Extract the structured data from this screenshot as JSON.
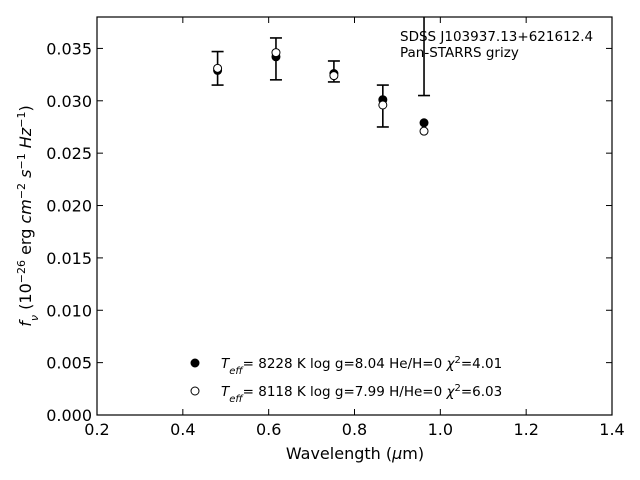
{
  "chart_data": {
    "type": "scatter",
    "title": "",
    "xlabel": "Wavelength (μm)",
    "ylabel": "f_ν (10^-26 erg cm^-2 s^-1 Hz^-1)",
    "xlim": [
      0.2,
      1.4
    ],
    "ylim": [
      0.0,
      0.038
    ],
    "x_ticks": [
      "0.2",
      "0.4",
      "0.6",
      "0.8",
      "1.0",
      "1.2",
      "1.4"
    ],
    "y_ticks": [
      "0.000",
      "0.005",
      "0.010",
      "0.015",
      "0.020",
      "0.025",
      "0.030",
      "0.035"
    ],
    "grid": false,
    "annotation_lines": [
      "SDSS J103937.13+621612.4",
      "Pan-STARRS grizy"
    ],
    "observed": {
      "name": "Pan-STARRS grizy",
      "x": [
        0.481,
        0.617,
        0.752,
        0.866,
        0.962
      ],
      "y": [
        0.0331,
        0.034,
        0.0328,
        0.0295,
        0.0371
      ],
      "yerr": [
        0.0016,
        0.002,
        0.001,
        0.002,
        0.0066
      ]
    },
    "series": [
      {
        "name": "T_eff= 8228 K  log g=8.04  He/H=0  χ²=4.01",
        "marker": "filled",
        "x": [
          0.481,
          0.617,
          0.752,
          0.866,
          0.962
        ],
        "y": [
          0.0329,
          0.0342,
          0.0326,
          0.0301,
          0.0279
        ]
      },
      {
        "name": "T_eff= 8118 K  log g=7.99  H/He=0  χ²=6.03",
        "marker": "open",
        "x": [
          0.481,
          0.617,
          0.752,
          0.866,
          0.962
        ],
        "y": [
          0.0331,
          0.0346,
          0.0324,
          0.0296,
          0.0271
        ]
      }
    ],
    "legend": {
      "placement": "lower-center",
      "entries": [
        {
          "marker": "filled",
          "teff_sym": "T",
          "teff_sub": "eff",
          "text": "=  8228 K  log g=8.04  He/H=0  ",
          "chi_sym": "χ",
          "chi_sup": "2",
          "chi_val": "=4.01"
        },
        {
          "marker": "open",
          "teff_sym": "T",
          "teff_sub": "eff",
          "text": "=  8118 K  log g=7.99  H/He=0  ",
          "chi_sym": "χ",
          "chi_sup": "2",
          "chi_val": "=6.03"
        }
      ]
    }
  }
}
